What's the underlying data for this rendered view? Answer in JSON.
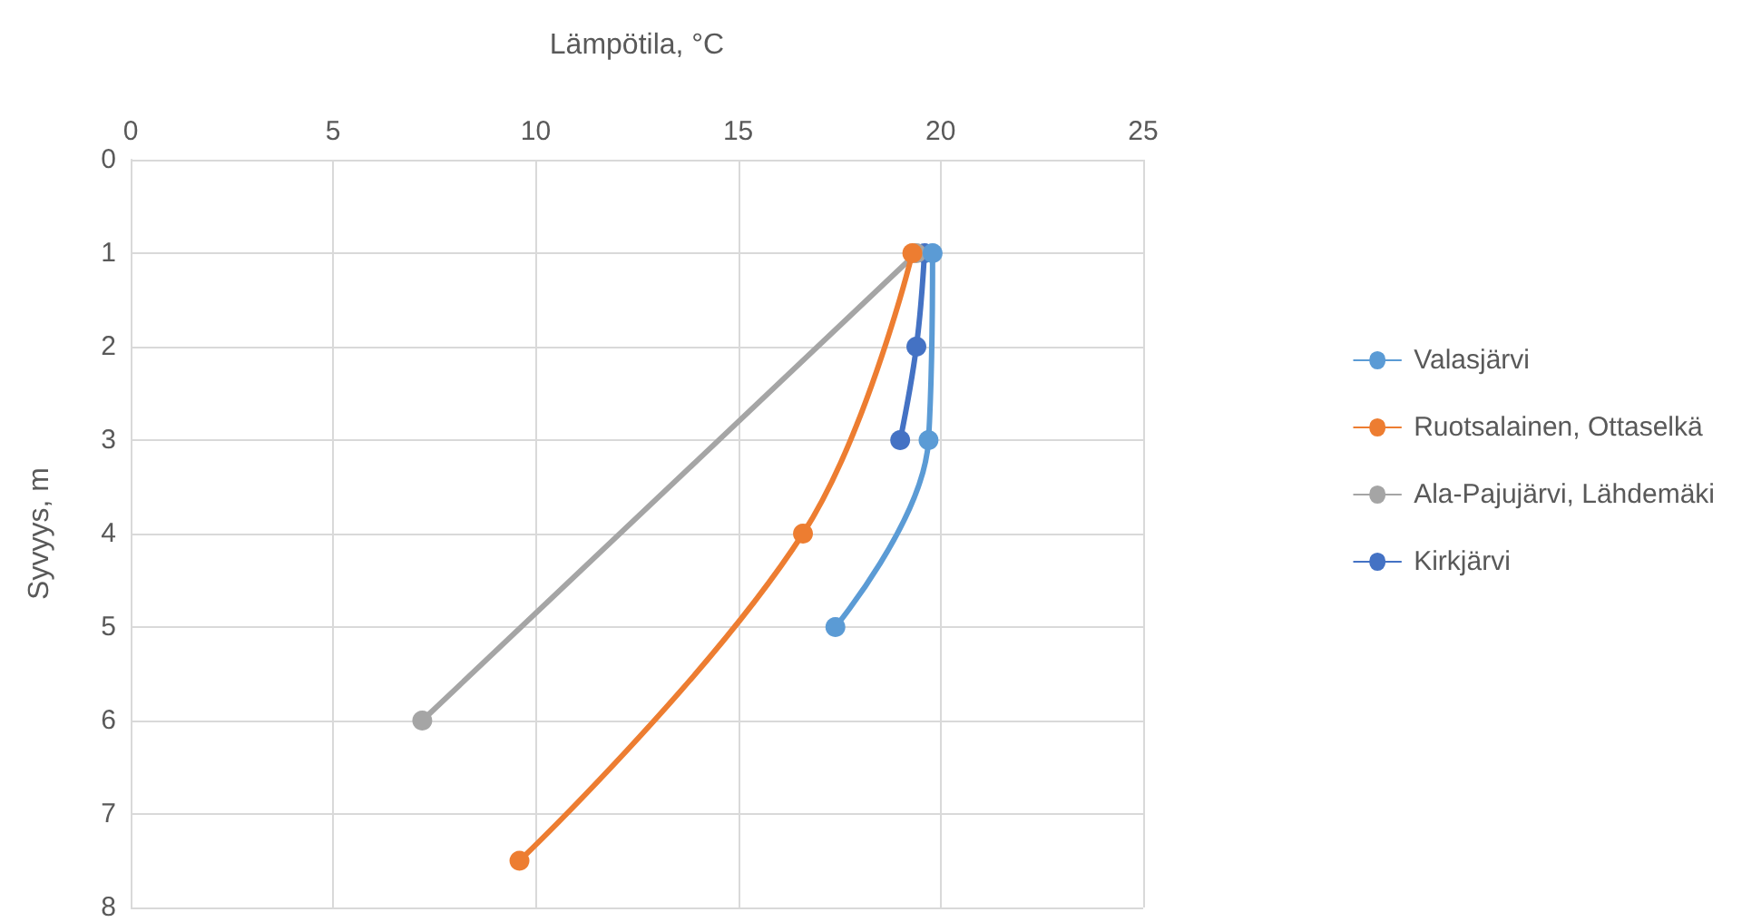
{
  "chart_data": {
    "type": "line",
    "xlabel": "Lämpötila, °C",
    "ylabel": "Syvyys, m",
    "xlim": [
      0,
      25
    ],
    "xticks": [
      0,
      5,
      10,
      15,
      20,
      25
    ],
    "ylim": [
      8,
      0
    ],
    "yticks": [
      0,
      1,
      2,
      3,
      4,
      5,
      6,
      7,
      8
    ],
    "grid": true,
    "legend": "right",
    "marker": "circle",
    "line_style": "solid",
    "series": [
      {
        "name": "Valasjärvi",
        "color": "#5b9bd5",
        "x": [
          19.8,
          19.7,
          17.4
        ],
        "values": [
          1,
          3,
          5
        ]
      },
      {
        "name": "Ruotsalainen, Ottaselkä",
        "color": "#ed7d31",
        "x": [
          19.3,
          16.6,
          9.6
        ],
        "values": [
          1,
          4,
          7.5
        ]
      },
      {
        "name": "Ala-Pajujärvi, Lähdemäki",
        "color": "#a5a5a5",
        "x": [
          19.4,
          7.2
        ],
        "values": [
          1,
          6
        ]
      },
      {
        "name": "Kirkjärvi",
        "color": "#4472c4",
        "x": [
          19.6,
          19.4,
          19.0
        ],
        "values": [
          1,
          2,
          3
        ]
      }
    ]
  }
}
